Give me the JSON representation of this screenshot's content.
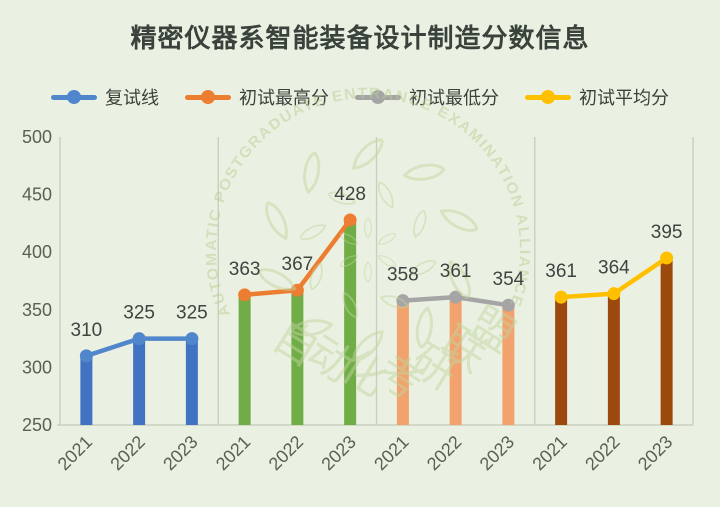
{
  "title": "精密仪器系智能装备设计制造分数信息",
  "chart_data": {
    "type": "bar+line",
    "panel_per_series": true,
    "categories": [
      "2021",
      "2022",
      "2023"
    ],
    "series": [
      {
        "name": "复试线",
        "values": [
          310,
          325,
          325
        ],
        "bar_color": "#4173C2",
        "line_color": "#5086CC"
      },
      {
        "name": "初试最高分",
        "values": [
          363,
          367,
          428
        ],
        "bar_color": "#70AD47",
        "line_color": "#ED7D31"
      },
      {
        "name": "初试最低分",
        "values": [
          358,
          361,
          354
        ],
        "bar_color": "#F1A26D",
        "line_color": "#A5A5A5"
      },
      {
        "name": "初试平均分",
        "values": [
          361,
          364,
          395
        ],
        "bar_color": "#9C490D",
        "line_color": "#FFC000"
      }
    ],
    "title": "精密仪器系智能装备设计制造分数信息",
    "xlabel": "",
    "ylabel": "",
    "ylim": [
      250,
      500
    ],
    "yticks": [
      250,
      300,
      350,
      400,
      450,
      500
    ],
    "grid": "vertical panel separators only",
    "legend_position": "top",
    "data_labels_shown": true
  },
  "watermark": {
    "ring_text": "AUTOMATIC POSTGRADUATE ENTRANCE EXAMINATION ALLIANCE",
    "center_text": "自动化考研联盟"
  },
  "colors": {
    "background": "#EBF1E2",
    "axis_line": "#C9CFC0",
    "title_text": "#3A423C",
    "data_label": "#3E4440",
    "axis_label": "#596054",
    "watermark": "#C2D6A0"
  }
}
